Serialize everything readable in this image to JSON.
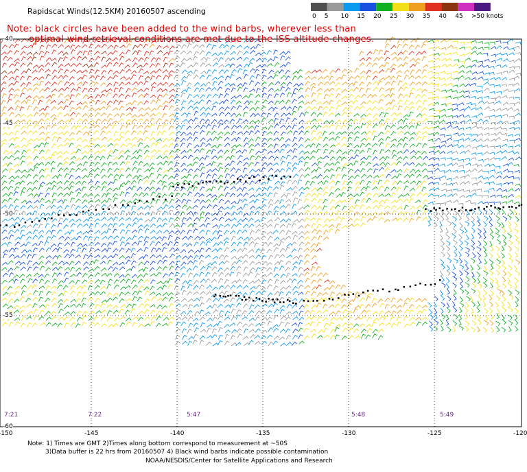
{
  "title": "Rapidscat Winds(12.5KM) 20160507 ascending",
  "note_line1": "Note: black circles have been added to the wind barbs, wherever less than",
  "note_line2": "optimal wind retrieval conditions are met due to the ISS altitude changes.",
  "legend": {
    "unit": "knots",
    "entries": [
      {
        "label": "0",
        "color": "#505050"
      },
      {
        "label": "5",
        "color": "#9a9a9a"
      },
      {
        "label": "10",
        "color": "#0a9af0"
      },
      {
        "label": "15",
        "color": "#1a50e0"
      },
      {
        "label": "20",
        "color": "#10b020"
      },
      {
        "label": "25",
        "color": "#f4e018"
      },
      {
        "label": "30",
        "color": "#f0a020"
      },
      {
        "label": "35",
        "color": "#e03020"
      },
      {
        "label": "40",
        "color": "#8a3410"
      },
      {
        "label": "45",
        "color": "#d030c0"
      },
      {
        "label": ">50 knots",
        "color": "#4a1a80"
      }
    ]
  },
  "lat_labels": [
    "-40",
    "-45",
    "-50",
    "-55",
    "-60"
  ],
  "lon_labels": [
    "-150",
    "-145",
    "-140",
    "-135",
    "-130",
    "-125",
    "-120"
  ],
  "time_labels": [
    "7:21",
    "7:22",
    "5:47",
    "5:48",
    "5:49"
  ],
  "footer": {
    "line1": "Note: 1) Times are GMT 2)Times along bottom correspond to measurement at ~50S",
    "line2": "3)Data buffer is 22 hrs from 20160507 4) Black wind barbs indicate possible contamination",
    "line3": "NOAA/NESDIS/Center for Satellite Applications and Research"
  }
}
